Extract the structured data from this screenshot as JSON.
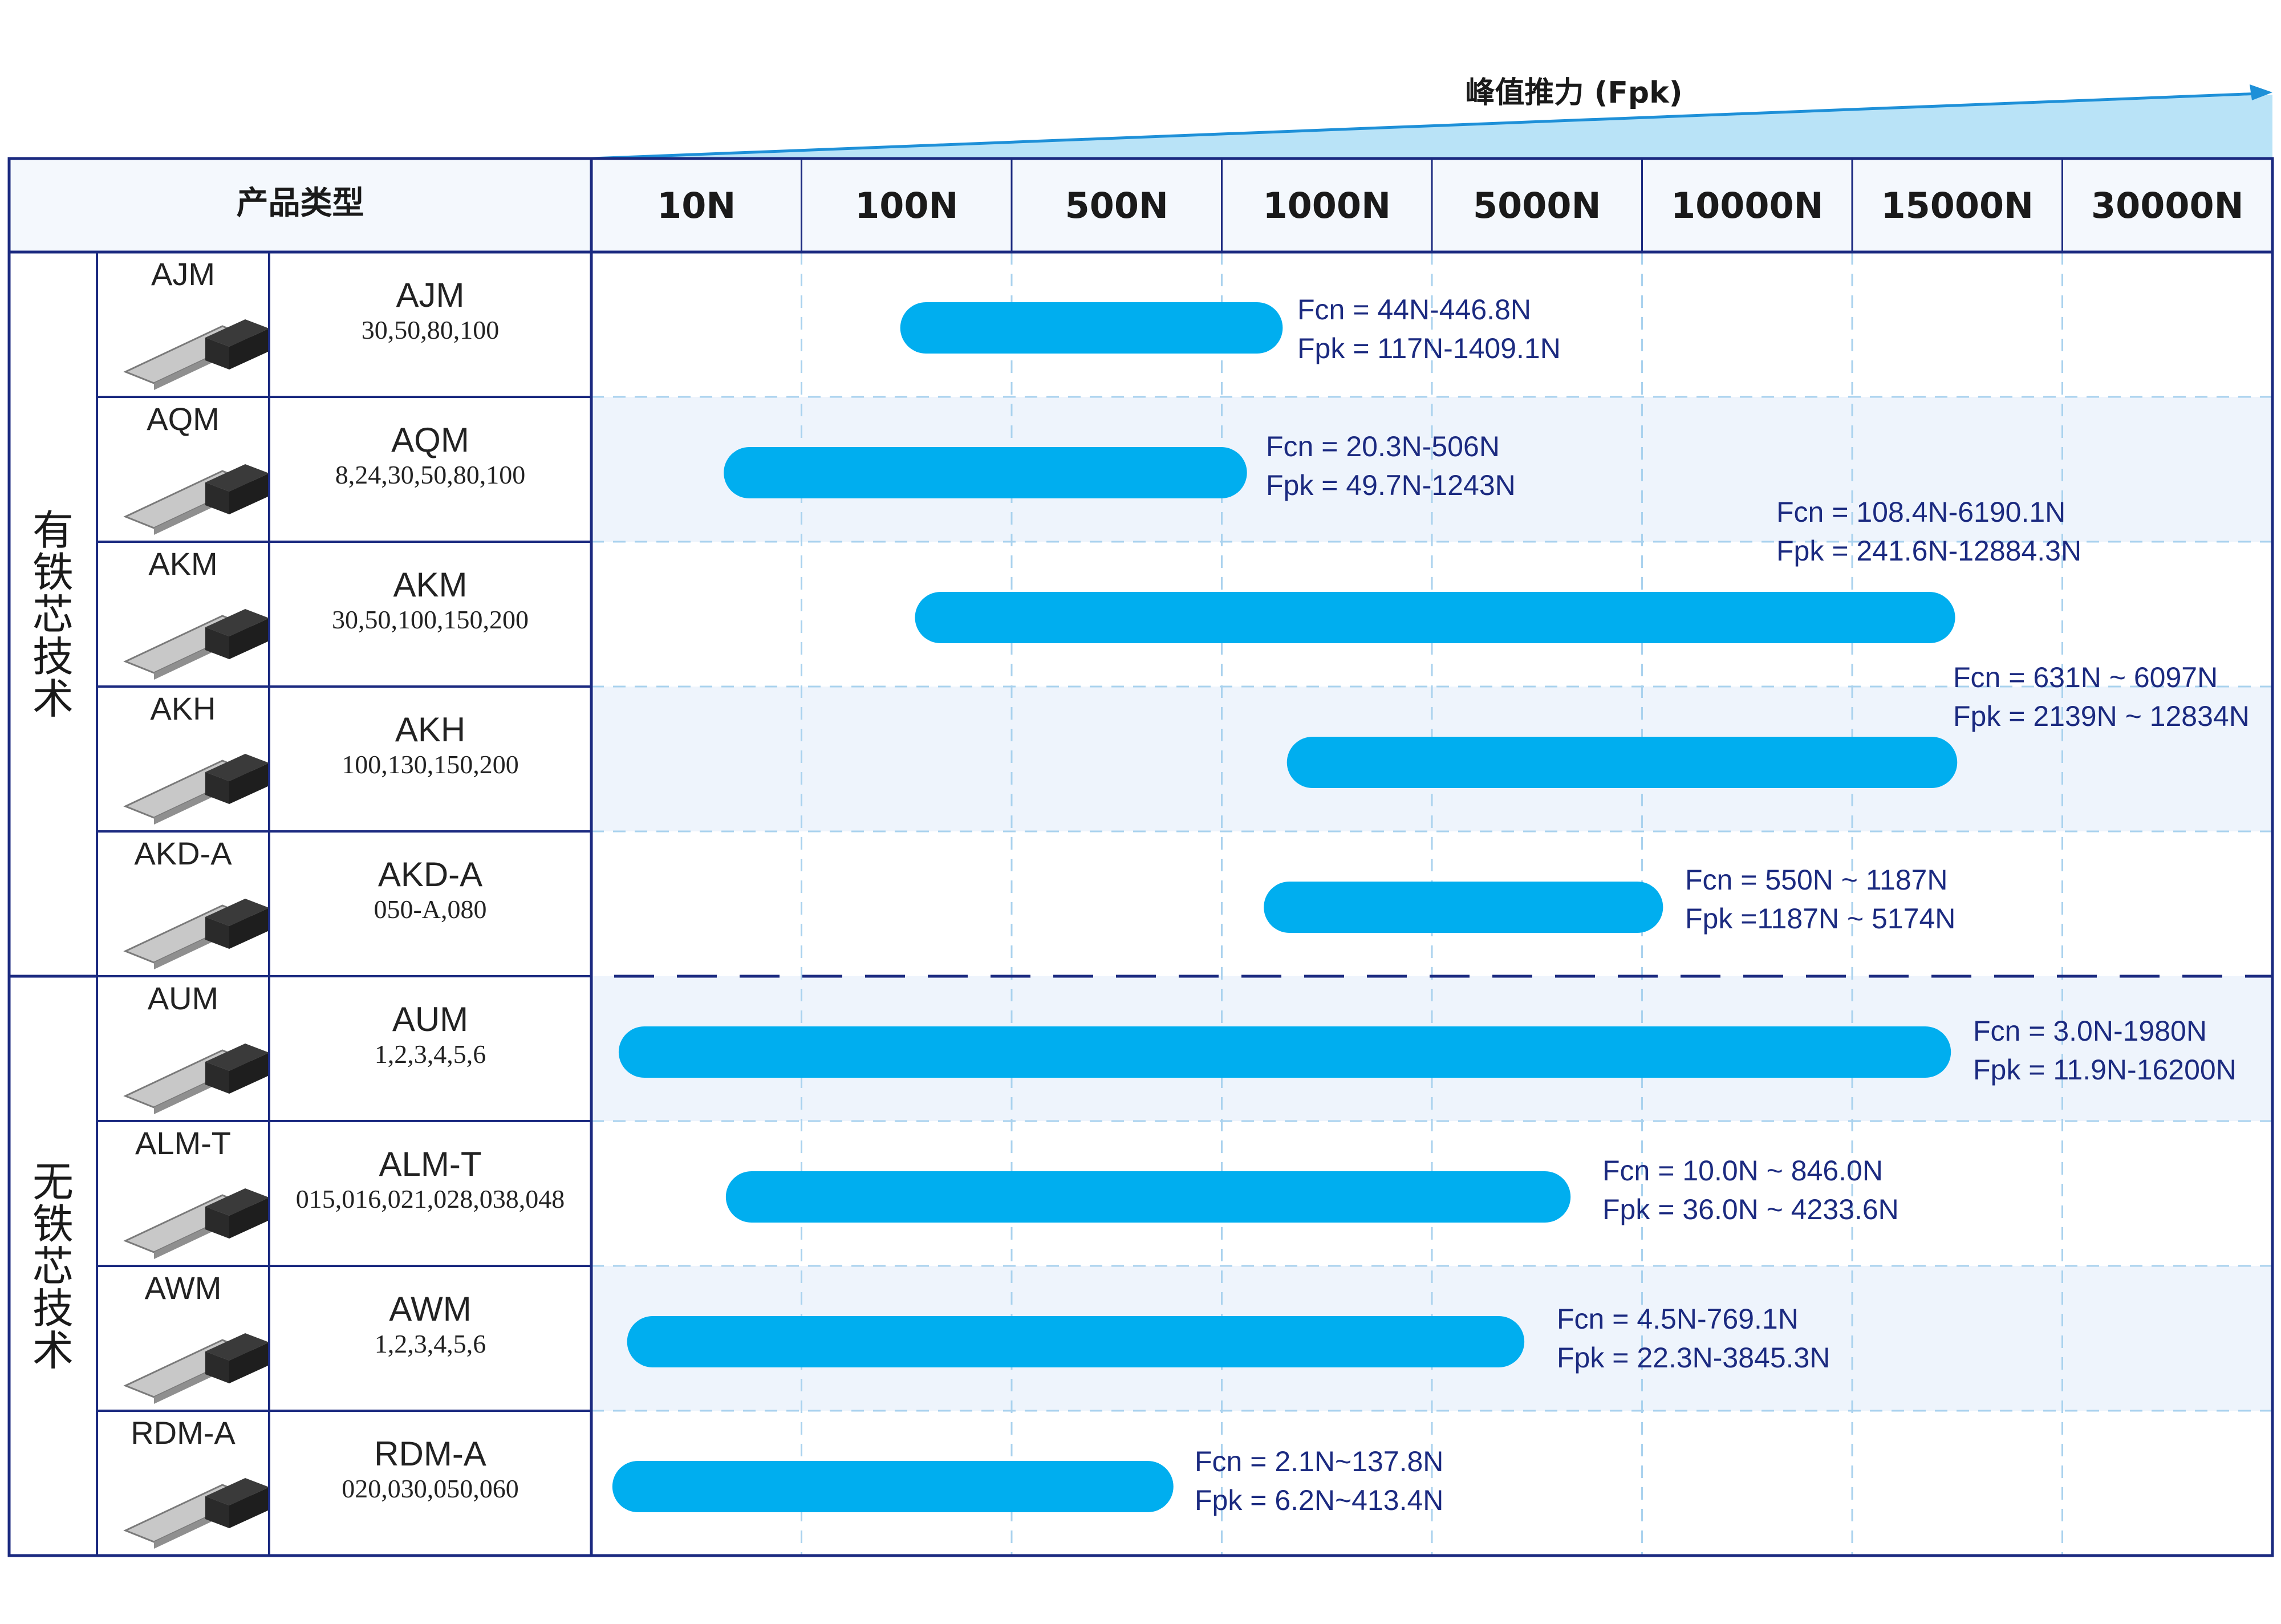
{
  "axis_title": "峰值推力 (Fpk)",
  "product_type_header": "产品类型",
  "groups": [
    {
      "label": "有铁芯技术",
      "rows": [
        0,
        4
      ]
    },
    {
      "label": "无铁芯技术",
      "rows": [
        5,
        8
      ]
    }
  ],
  "colors": {
    "bar": "#00aeef",
    "border": "#1b2a80",
    "label_text": "#1b2a80",
    "alt_row": "#eef4fc",
    "header_bg": "#f4f8fd",
    "arrow": "#1e90d8",
    "wedge": "#b9e3f7",
    "axis_title": "#1b2a80"
  },
  "chart_data": {
    "type": "bar",
    "orientation": "horizontal-range",
    "categories": [
      "10N",
      "100N",
      "500N",
      "1000N",
      "5000N",
      "10000N",
      "15000N",
      "30000N"
    ],
    "rows": [
      {
        "name": "AJM",
        "image_label": "AJM",
        "sizes": "30,50,80,100",
        "start": 1.47,
        "end": 3.29,
        "labels": [
          "Fcn = 44N-446.8N",
          "Fpk = 117N-1409.1N"
        ],
        "image": "motor-iron-1"
      },
      {
        "name": "AQM",
        "image_label": "AQM",
        "sizes": "8,24,30,50,80,100",
        "start": 0.63,
        "end": 3.12,
        "labels": [
          "Fcn = 20.3N-506N",
          "Fpk = 49.7N-1243N"
        ],
        "image": "motor-iron-2"
      },
      {
        "name": "AKM",
        "image_label": "AKM",
        "sizes": "30,50,100,150,200",
        "start": 1.54,
        "end": 6.49,
        "labels": [
          "Fcn = 108.4N-6190.1N",
          "Fpk = 241.6N-12884.3N"
        ],
        "image": "motor-iron-3"
      },
      {
        "name": "AKH",
        "image_label": "AKH",
        "sizes": "100,130,150,200",
        "start": 3.31,
        "end": 6.5,
        "labels": [
          "Fcn = 631N ~ 6097N",
          "Fpk = 2139N ~ 12834N"
        ],
        "image": "motor-iron-4"
      },
      {
        "name": "AKD-A",
        "image_label": "AKD-A",
        "sizes": "050-A,080",
        "start": 3.2,
        "end": 5.1,
        "labels": [
          "Fcn = 550N ~ 1187N",
          "Fpk =1187N ~ 5174N"
        ],
        "image": "motor-iron-5"
      },
      {
        "name": "AUM",
        "image_label": "AUM",
        "sizes": "1,2,3,4,5,6",
        "start": 0.13,
        "end": 6.47,
        "labels": [
          "Fcn = 3.0N-1980N",
          "Fpk = 11.9N-16200N"
        ],
        "image": "motor-ironless-1"
      },
      {
        "name": "ALM-T",
        "image_label": "ALM-T",
        "sizes": "015,016,021,028,038,048",
        "start": 0.64,
        "end": 4.66,
        "labels": [
          "Fcn = 10.0N ~ 846.0N",
          "Fpk = 36.0N ~ 4233.6N"
        ],
        "image": "motor-ironless-2"
      },
      {
        "name": "AWM",
        "image_label": "AWM",
        "sizes": "1,2,3,4,5,6",
        "start": 0.17,
        "end": 4.44,
        "labels": [
          "Fcn = 4.5N-769.1N",
          "Fpk = 22.3N-3845.3N"
        ],
        "image": "motor-ironless-3"
      },
      {
        "name": "RDM-A",
        "image_label": "RDM-A",
        "sizes": "020,030,050,060",
        "start": 0.1,
        "end": 2.77,
        "labels": [
          "Fcn = 2.1N~137.8N",
          "Fpk = 6.2N~413.4N"
        ],
        "image": "motor-rod"
      }
    ],
    "note": "start/end are positions along the categorical force axis (0 = left edge of 10N column, 8 = right edge of 30000N column)",
    "xlabel": "峰值推力 (Fpk)",
    "grid": true,
    "divider_between_groups": "dashed"
  }
}
